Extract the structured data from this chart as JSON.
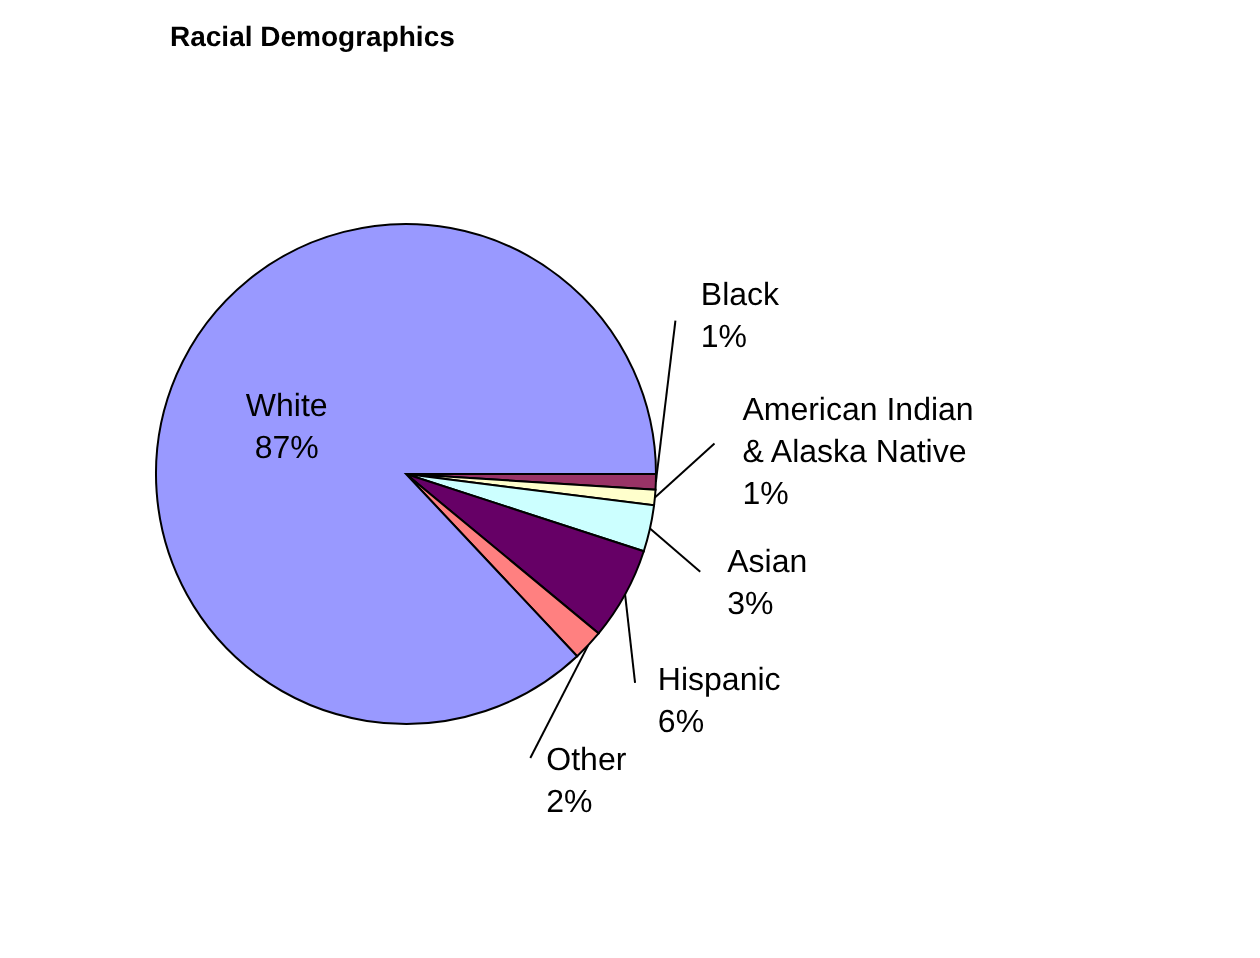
{
  "chart_data": {
    "type": "pie",
    "title": "Racial Demographics",
    "categories": [
      "Black",
      "American Indian & Alaska Native",
      "Asian",
      "Hispanic",
      "Other",
      "White"
    ],
    "values": [
      1,
      1,
      3,
      6,
      2,
      87
    ],
    "value_labels": [
      "1%",
      "1%",
      "3%",
      "6%",
      "2%",
      "87%"
    ],
    "colors": [
      "#993366",
      "#ffffcc",
      "#ccffff",
      "#660066",
      "#ff8080",
      "#9999ff"
    ],
    "legend": false
  }
}
